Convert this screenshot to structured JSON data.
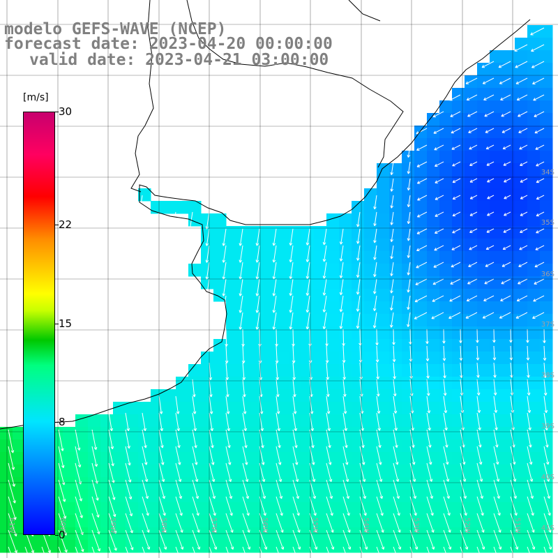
{
  "title": {
    "line1": "modelo GEFS-WAVE (NCEP)",
    "line2": "forecast date: 2023-04-20 00:00:00",
    "line3": "valid date: 2023-04-21 03:00:00"
  },
  "colorbar": {
    "unit": "[m/s]",
    "ticks": [
      "30",
      "22",
      "15",
      "8",
      "0"
    ],
    "tick_values": [
      30,
      22,
      15,
      8,
      0
    ],
    "min": 0,
    "max": 30,
    "colors": [
      "#0000ff",
      "#00e5ff",
      "#00ff80",
      "#00c800",
      "#ffff00",
      "#ff8c00",
      "#ff0000",
      "#c8006e"
    ]
  },
  "map": {
    "latitude_labels": [
      "34S",
      "35S",
      "36S",
      "37S",
      "38S",
      "39S",
      "40S",
      "41S"
    ],
    "longitude_labels": [
      "61W",
      "60W",
      "59W",
      "58W",
      "57W",
      "56W",
      "55W",
      "54W",
      "53W",
      "52W",
      "51W"
    ],
    "colors": {
      "land": "#ffffff",
      "coast": "#000000",
      "grid": "#000000",
      "arrows": "#ffffff",
      "labels": "#a0a0a0"
    }
  }
}
